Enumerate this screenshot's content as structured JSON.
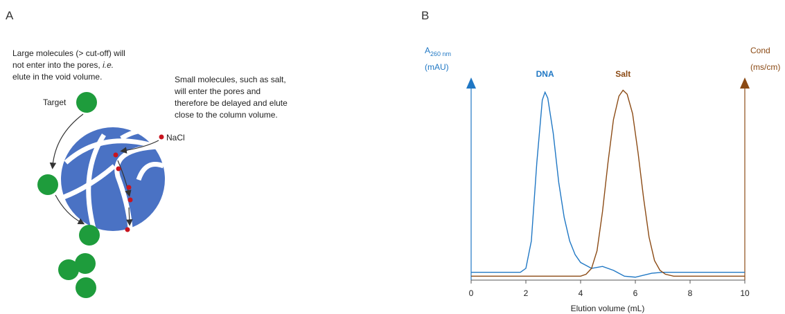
{
  "panel_a": {
    "label": "A",
    "large_text": [
      "Large molecules (> cut-off) will",
      "not enter into the pores, ",
      "i.e.",
      "elute in the void volume."
    ],
    "small_text": [
      "Small molecules,  such as salt,",
      "will enter the pores and",
      "therefore be delayed and elute",
      "close to the column volume."
    ],
    "target": "Target",
    "nacl": "NaCl"
  },
  "chart_data": {
    "type": "line",
    "panel_label": "B",
    "y_label": {
      "main": "A",
      "sub": "260 nm",
      "unit": "(mAU)"
    },
    "y2_label": {
      "main": "Cond",
      "unit": "(ms/cm)"
    },
    "x_label": "Elution volume (mL)",
    "xlim": [
      0,
      10
    ],
    "xticks": [
      0,
      2,
      4,
      6,
      8,
      10
    ],
    "ylim": [
      0,
      100
    ],
    "y2lim": [
      0,
      100
    ],
    "series": [
      {
        "name": "DNA",
        "color": "#1f77c4",
        "x": [
          0,
          1,
          1.8,
          2.0,
          2.2,
          2.4,
          2.6,
          2.7,
          2.8,
          3.0,
          3.2,
          3.4,
          3.6,
          3.8,
          4.0,
          4.4,
          4.8,
          5.2,
          5.6,
          6.0,
          6.6,
          7.0,
          8.0,
          10.0
        ],
        "values": [
          4,
          4,
          4,
          6,
          20,
          60,
          92,
          96,
          93,
          75,
          50,
          32,
          20,
          13,
          9,
          6,
          7,
          5,
          2,
          1.5,
          3.5,
          4,
          4,
          4
        ]
      },
      {
        "name": "Salt",
        "color": "#8b4a14",
        "axis": "y2",
        "x": [
          0,
          4.0,
          4.2,
          4.4,
          4.6,
          4.8,
          5.0,
          5.2,
          5.4,
          5.55,
          5.7,
          5.9,
          6.1,
          6.3,
          6.5,
          6.7,
          6.9,
          7.1,
          7.4,
          10.0
        ],
        "values": [
          2,
          2,
          3,
          6,
          15,
          35,
          60,
          82,
          94,
          97,
          95,
          85,
          65,
          42,
          22,
          10,
          5,
          3,
          2,
          2
        ]
      }
    ]
  }
}
